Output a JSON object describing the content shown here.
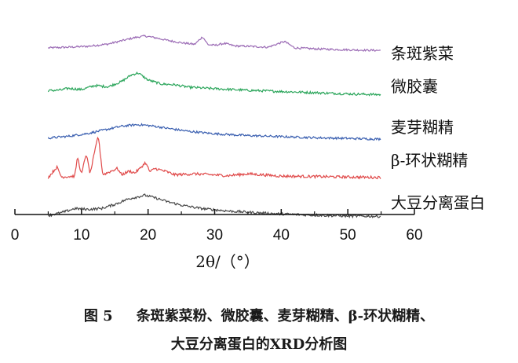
{
  "chart_data": {
    "type": "line",
    "xlabel": "2θ/（°）",
    "xlim": [
      0,
      60
    ],
    "x_ticks": [
      "0",
      "10",
      "20",
      "30",
      "40",
      "50",
      "60"
    ],
    "y_ticks_shown": false,
    "legend": "series labels at right of each trace",
    "series": [
      {
        "name": "条斑紫菜",
        "color": "#9b6bb5",
        "x": [
          5,
          8,
          11,
          14,
          16,
          18,
          19.5,
          21,
          23,
          25,
          27,
          28.2,
          29,
          30,
          31.5,
          33,
          35,
          38,
          40.5,
          42,
          45,
          48,
          52,
          55
        ],
        "y": [
          0.1,
          0.12,
          0.15,
          0.22,
          0.32,
          0.42,
          0.47,
          0.42,
          0.33,
          0.26,
          0.21,
          0.45,
          0.2,
          0.18,
          0.24,
          0.16,
          0.15,
          0.12,
          0.3,
          0.1,
          0.07,
          0.05,
          0.03,
          0.02
        ]
      },
      {
        "name": "微胶囊",
        "color": "#2aa55a",
        "x": [
          5,
          7,
          8,
          10,
          12,
          14,
          16,
          17.5,
          18.5,
          20,
          22,
          24,
          26,
          30,
          35,
          40,
          45,
          50,
          55
        ],
        "y": [
          0.15,
          0.17,
          0.21,
          0.18,
          0.28,
          0.25,
          0.38,
          0.55,
          0.6,
          0.42,
          0.32,
          0.3,
          0.24,
          0.2,
          0.16,
          0.13,
          0.1,
          0.07,
          0.05
        ]
      },
      {
        "name": "麦芽糊精",
        "color": "#3a5fb0",
        "x": [
          5,
          8,
          11,
          14,
          16,
          18,
          19,
          21,
          23,
          26,
          30,
          35,
          40,
          45,
          50,
          55
        ],
        "y": [
          0.05,
          0.1,
          0.18,
          0.3,
          0.38,
          0.42,
          0.42,
          0.38,
          0.32,
          0.24,
          0.17,
          0.12,
          0.09,
          0.06,
          0.04,
          0.02
        ]
      },
      {
        "name": "β-环状糊精",
        "color": "#e04a4a",
        "x": [
          5,
          6.3,
          7,
          9,
          9.4,
          10,
          10.7,
          11.3,
          12.5,
          13.2,
          15.4,
          16,
          17.2,
          18,
          18.8,
          19.6,
          20.3,
          21,
          22.7,
          24,
          27,
          32,
          35,
          40,
          45,
          50,
          55
        ],
        "y": [
          0.02,
          0.25,
          0.03,
          0.05,
          0.48,
          0.08,
          0.55,
          0.1,
          0.95,
          0.08,
          0.22,
          0.08,
          0.16,
          0.12,
          0.22,
          0.35,
          0.14,
          0.22,
          0.15,
          0.08,
          0.1,
          0.06,
          0.1,
          0.05,
          0.04,
          0.03,
          0.02
        ]
      },
      {
        "name": "大豆分离蛋白",
        "color": "#474747",
        "x": [
          5,
          7,
          9,
          11,
          13,
          15,
          17,
          19.5,
          21,
          23,
          25,
          28,
          32,
          36,
          40,
          45,
          50,
          55
        ],
        "y": [
          0.05,
          0.12,
          0.22,
          0.2,
          0.22,
          0.32,
          0.45,
          0.54,
          0.48,
          0.38,
          0.3,
          0.22,
          0.16,
          0.12,
          0.09,
          0.06,
          0.04,
          0.03
        ]
      }
    ]
  },
  "caption": {
    "figure_number": "图 5",
    "line1": "条斑紫菜粉、微胶囊、麦芽糊精、β-环状糊精、",
    "line2": "大豆分离蛋白的XRD分析图"
  }
}
